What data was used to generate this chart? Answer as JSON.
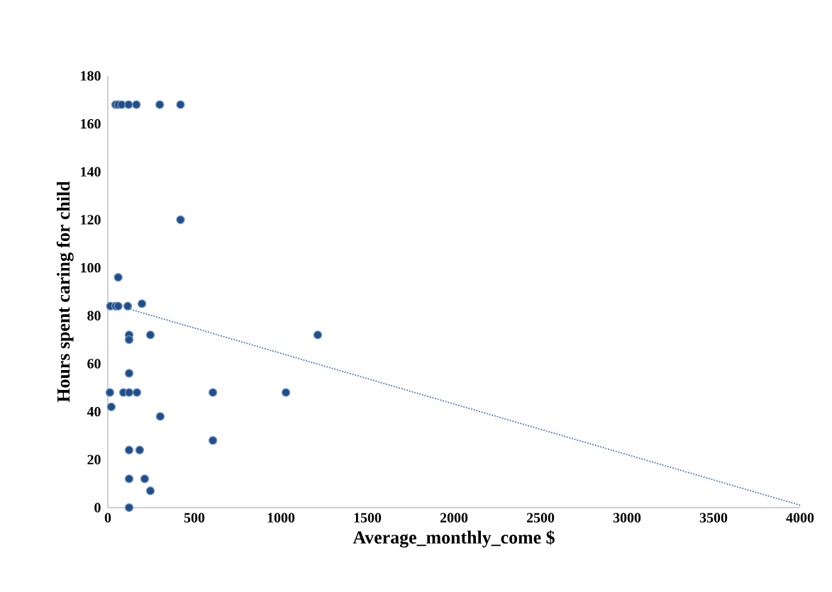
{
  "chart_data": {
    "type": "scatter",
    "xlabel": "Average_monthly_come $",
    "ylabel": "Hours spent caring for child",
    "xlim": [
      0,
      4000
    ],
    "ylim": [
      0,
      180
    ],
    "xticks": [
      0,
      500,
      1000,
      1500,
      2000,
      2500,
      3000,
      3500,
      4000
    ],
    "yticks": [
      0,
      20,
      40,
      60,
      80,
      100,
      120,
      140,
      160,
      180
    ],
    "grid": false,
    "marker": "circle",
    "series": [
      {
        "color": "#1f4e8c",
        "x": [
          45,
          60,
          80,
          120,
          165,
          300,
          420,
          420,
          60,
          197,
          15,
          45,
          60,
          115,
          123,
          246,
          1213,
          123,
          123,
          12,
          90,
          123,
          168,
          607,
          1029,
          20,
          303,
          607,
          123,
          184,
          123,
          213,
          246,
          123
        ],
        "values": [
          168,
          168,
          168,
          168,
          168,
          168,
          168,
          120,
          96,
          85,
          84,
          84,
          84,
          84,
          72,
          72,
          72,
          70,
          56,
          48,
          48,
          48,
          48,
          48,
          48,
          42,
          38,
          28,
          24,
          24,
          12,
          12,
          7,
          0
        ]
      },
      {
        "type": "line",
        "line_style": "dotted",
        "marker": "none",
        "color": "#4472c4",
        "x": [
          115,
          4000
        ],
        "values": [
          83,
          1
        ]
      }
    ]
  }
}
